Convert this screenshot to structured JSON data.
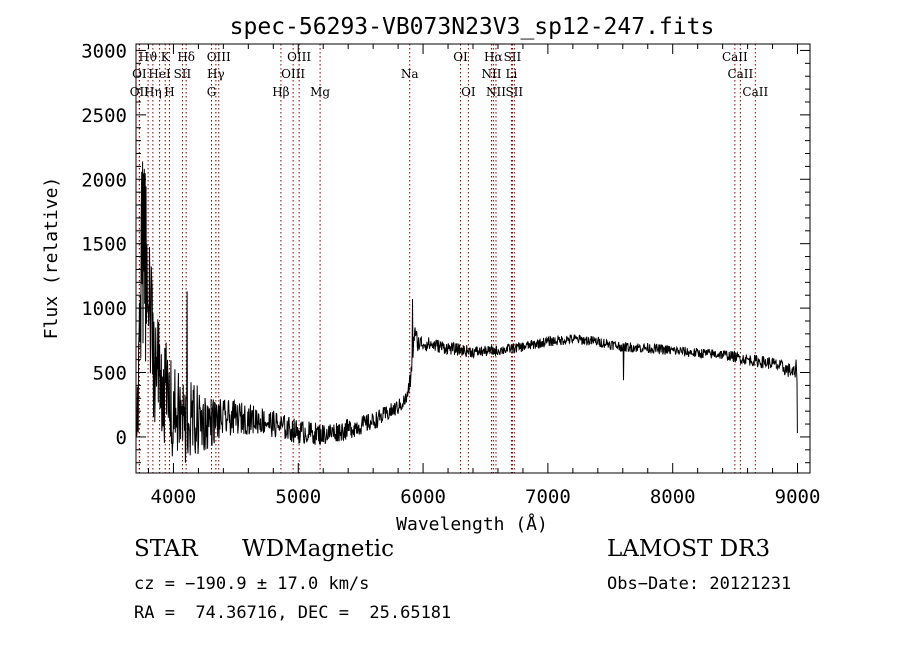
{
  "chart_data": {
    "type": "line",
    "title": "spec-56293-VB073N23V3_sp12-247.fits",
    "xlabel": "Wavelength (Å)",
    "ylabel": "Flux (relative)",
    "xlim": [
      3700,
      9100
    ],
    "ylim": [
      -280,
      3050
    ],
    "xticks": [
      4000,
      5000,
      6000,
      7000,
      8000,
      9000
    ],
    "yticks": [
      0,
      500,
      1000,
      1500,
      2000,
      2500,
      3000
    ],
    "xtick_labels": [
      "4000",
      "5000",
      "6000",
      "7000",
      "8000",
      "9000"
    ],
    "ytick_labels": [
      "0",
      "500",
      "1000",
      "1500",
      "2000",
      "2500",
      "3000"
    ],
    "grid": false,
    "spectrum_profile": [
      [
        3700,
        100,
        0
      ],
      [
        3720,
        60,
        600
      ],
      [
        3740,
        1300,
        900
      ],
      [
        3760,
        1500,
        800
      ],
      [
        3800,
        1000,
        650
      ],
      [
        3850,
        600,
        500
      ],
      [
        3900,
        450,
        450
      ],
      [
        3950,
        300,
        400
      ],
      [
        4000,
        200,
        350
      ],
      [
        4100,
        130,
        320
      ],
      [
        4200,
        120,
        280
      ],
      [
        4300,
        120,
        200
      ],
      [
        4400,
        140,
        150
      ],
      [
        4500,
        150,
        130
      ],
      [
        4700,
        130,
        110
      ],
      [
        4900,
        70,
        100
      ],
      [
        5000,
        40,
        95
      ],
      [
        5200,
        20,
        85
      ],
      [
        5400,
        60,
        80
      ],
      [
        5600,
        120,
        70
      ],
      [
        5800,
        230,
        60
      ],
      [
        5870,
        300,
        60
      ],
      [
        5900,
        450,
        70
      ],
      [
        5930,
        800,
        90
      ],
      [
        5960,
        730,
        70
      ],
      [
        6050,
        720,
        55
      ],
      [
        6200,
        690,
        50
      ],
      [
        6400,
        660,
        45
      ],
      [
        6600,
        670,
        40
      ],
      [
        6800,
        700,
        40
      ],
      [
        7000,
        740,
        40
      ],
      [
        7200,
        760,
        40
      ],
      [
        7400,
        740,
        40
      ],
      [
        7600,
        700,
        40
      ],
      [
        7800,
        690,
        40
      ],
      [
        8000,
        670,
        40
      ],
      [
        8200,
        650,
        40
      ],
      [
        8400,
        640,
        40
      ],
      [
        8600,
        600,
        45
      ],
      [
        8800,
        570,
        50
      ],
      [
        8950,
        510,
        60
      ],
      [
        9000,
        480,
        60
      ]
    ],
    "spectrum_features": [
      {
        "wavelength": 3990,
        "flux": -150
      },
      {
        "wavelength": 4095,
        "flux": -200
      },
      {
        "wavelength": 4110,
        "flux": 1130
      },
      {
        "wavelength": 5915,
        "flux": 1070
      },
      {
        "wavelength": 7605,
        "flux": 440
      },
      {
        "wavelength": 8990,
        "flux": 600
      },
      {
        "wavelength": 9000,
        "flux": 30
      }
    ],
    "line_ids": [
      {
        "label": "Hϑ",
        "wavelength": 3797,
        "row": 1
      },
      {
        "label": "K",
        "wavelength": 3934,
        "row": 1
      },
      {
        "label": "Hδ",
        "wavelength": 4102,
        "row": 1
      },
      {
        "label": "OIII",
        "wavelength": 4363,
        "row": 1
      },
      {
        "label": "OIII",
        "wavelength": 5007,
        "row": 1
      },
      {
        "label": "OI",
        "wavelength": 6300,
        "row": 1
      },
      {
        "label": "Hα",
        "wavelength": 6563,
        "row": 1
      },
      {
        "label": "SII",
        "wavelength": 6716,
        "row": 1
      },
      {
        "label": "CaII",
        "wavelength": 8498,
        "row": 1
      },
      {
        "label": "OI",
        "wavelength": 3727,
        "row": 2
      },
      {
        "label": "HeI",
        "wavelength": 3889,
        "row": 2
      },
      {
        "label": "SII",
        "wavelength": 4072,
        "row": 2
      },
      {
        "label": "Hγ",
        "wavelength": 4340,
        "row": 2
      },
      {
        "label": "OIII",
        "wavelength": 4959,
        "row": 2
      },
      {
        "label": "Na",
        "wavelength": 5893,
        "row": 2
      },
      {
        "label": "NII",
        "wavelength": 6548,
        "row": 2
      },
      {
        "label": "Li",
        "wavelength": 6708,
        "row": 2
      },
      {
        "label": "CaII",
        "wavelength": 8542,
        "row": 2
      },
      {
        "label": "OII",
        "wavelength": 3727,
        "row": 3
      },
      {
        "label": "Hη",
        "wavelength": 3835,
        "row": 3
      },
      {
        "label": "H",
        "wavelength": 3968,
        "row": 3
      },
      {
        "label": "G",
        "wavelength": 4305,
        "row": 3
      },
      {
        "label": "Hβ",
        "wavelength": 4861,
        "row": 3
      },
      {
        "label": "Mg",
        "wavelength": 5175,
        "row": 3
      },
      {
        "label": "OI",
        "wavelength": 6363,
        "row": 3
      },
      {
        "label": "NII",
        "wavelength": 6584,
        "row": 3
      },
      {
        "label": "SII",
        "wavelength": 6731,
        "row": 3
      },
      {
        "label": "CaII",
        "wavelength": 8662,
        "row": 3
      }
    ],
    "line_color": "#000000",
    "marker_color": "#8b0000"
  },
  "footer": {
    "class_label": "STAR",
    "subclass": "WDMagnetic",
    "survey": "LAMOST DR3",
    "redshift": "cz = −190.9 ± 17.0 km/s",
    "obs_date": "Obs−Date: 20121231",
    "coords": "RA =  74.36716, DEC =  25.65181"
  }
}
